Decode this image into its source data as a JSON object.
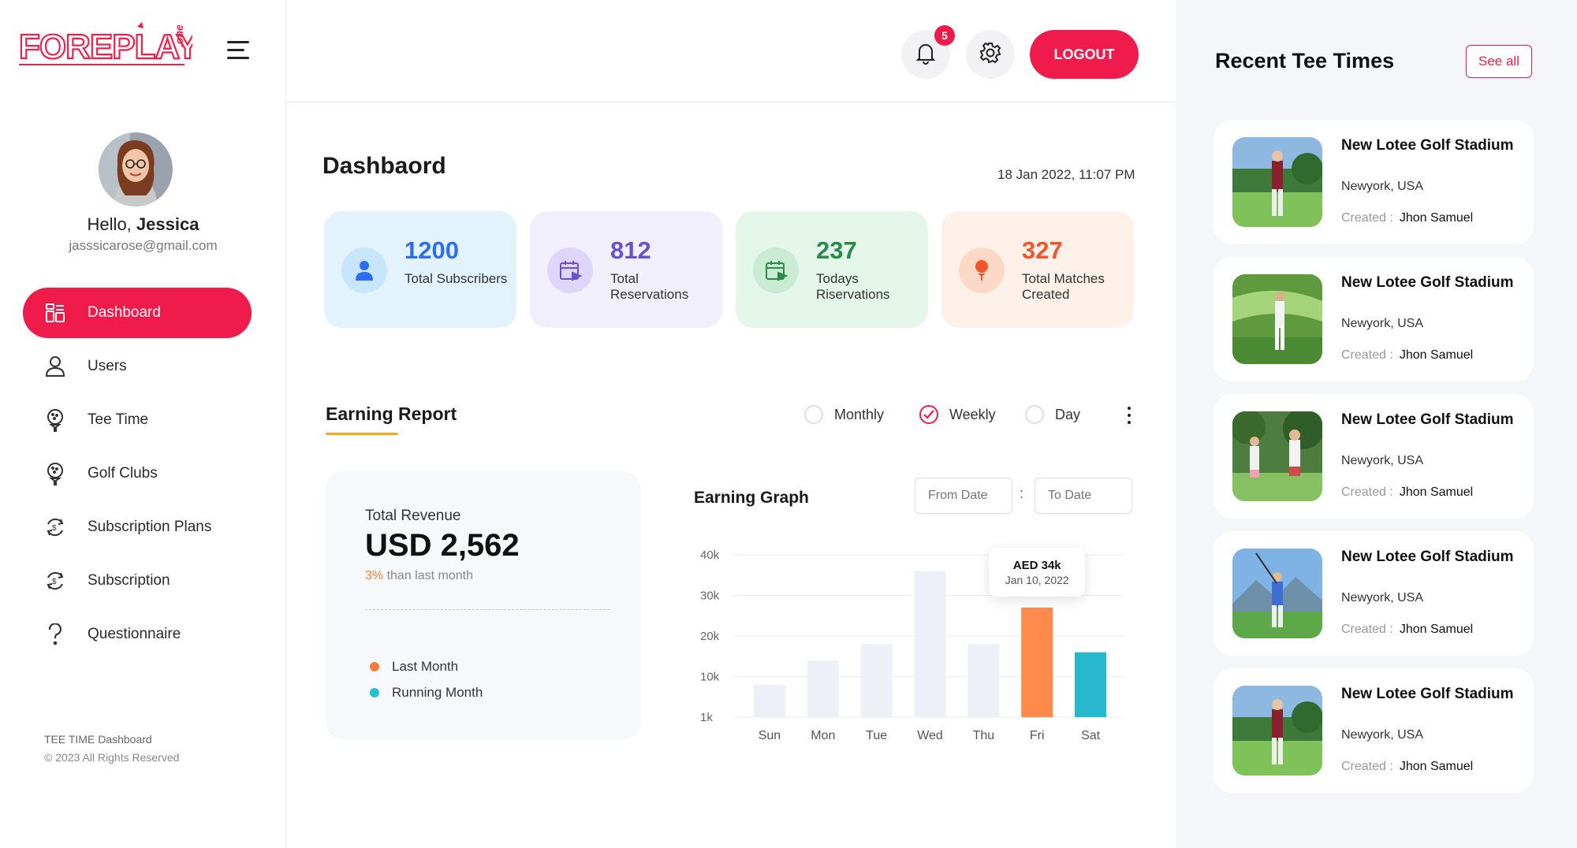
{
  "brand": {
    "logo_text": "FOREPLAY",
    "logo_suffix": ".one"
  },
  "profile": {
    "greeting": "Hello,",
    "name": "Jessica",
    "email": "jasssicarose@gmail.com"
  },
  "sidebar": {
    "items": [
      {
        "label": "Dashboard",
        "icon": "dashboard-icon",
        "active": true
      },
      {
        "label": "Users",
        "icon": "user-icon"
      },
      {
        "label": "Tee Time",
        "icon": "golf-ball-tee-icon"
      },
      {
        "label": "Golf Clubs",
        "icon": "golf-ball-tee-icon"
      },
      {
        "label": "Subscription Plans",
        "icon": "subscription-cycle-icon"
      },
      {
        "label": "Subscription",
        "icon": "subscription-cycle-icon"
      },
      {
        "label": "Questionnaire",
        "icon": "question-icon"
      }
    ],
    "footer_title": "TEE TIME Dashboard",
    "footer_copy": "© 2023 All Rights Reserved"
  },
  "topbar": {
    "notification_count": "5",
    "logout_label": "LOGOUT"
  },
  "main": {
    "title": "Dashbaord",
    "datetime": "18 Jan 2022, 11:07 PM",
    "stats": [
      {
        "value": "1200",
        "label": "Total Subscribers",
        "color": "#2d6cf6",
        "bg": "#e3f3fd"
      },
      {
        "value": "812",
        "label": "Total Reservations",
        "color": "#6b4fd1",
        "bg": "#f1effc"
      },
      {
        "value": "237",
        "label": "Todays Riservations",
        "color": "#2a8a4a",
        "bg": "#e4f5ea"
      },
      {
        "value": "327",
        "label": "Total Matches Created",
        "color": "#f2552c",
        "bg": "#fdf1ea"
      }
    ],
    "earning_report": {
      "title": "Earning Report",
      "periods": [
        {
          "label": "Monthly",
          "selected": false
        },
        {
          "label": "Weekly",
          "selected": true
        },
        {
          "label": "Day",
          "selected": false
        }
      ]
    },
    "revenue": {
      "label": "Total Revenue",
      "value": "USD 2,562",
      "change_pct": "3%",
      "change_text": " than last month",
      "legend": [
        {
          "label": "Last Month",
          "color": "#f47c3c"
        },
        {
          "label": "Running Month",
          "color": "#26c0d3"
        }
      ]
    },
    "graph": {
      "title": "Earning Graph",
      "from_placeholder": "From Date",
      "to_placeholder": "To Date",
      "separator": ":",
      "tooltip_value": "AED 34k",
      "tooltip_date": "Jan 10, 2022"
    }
  },
  "chart_data": {
    "type": "bar",
    "categories": [
      "Sun",
      "Mon",
      "Tue",
      "Wed",
      "Thu",
      "Fri",
      "Sat"
    ],
    "values": [
      8,
      14,
      18,
      36,
      18,
      27,
      16
    ],
    "y_ticks": [
      "40k",
      "30k",
      "20k",
      "10k",
      "1k"
    ],
    "ylim": [
      0,
      40
    ],
    "highlight": {
      "Fri": "#ff8a4c",
      "Sat": "#27b8cf"
    },
    "default_color": "#eef0f7",
    "grid": true
  },
  "recent_tee_times": {
    "title": "Recent Tee Times",
    "see_all": "See all",
    "created_label": "Created :",
    "items": [
      {
        "name": "New Lotee Golf Stadium",
        "location": "Newyork, USA",
        "created_by": "Jhon Samuel"
      },
      {
        "name": "New Lotee Golf Stadium",
        "location": "Newyork, USA",
        "created_by": "Jhon Samuel"
      },
      {
        "name": "New Lotee Golf Stadium",
        "location": "Newyork, USA",
        "created_by": "Jhon Samuel"
      },
      {
        "name": "New Lotee Golf Stadium",
        "location": "Newyork, USA",
        "created_by": "Jhon Samuel"
      },
      {
        "name": "New Lotee Golf Stadium",
        "location": "Newyork, USA",
        "created_by": "Jhon Samuel"
      }
    ]
  }
}
